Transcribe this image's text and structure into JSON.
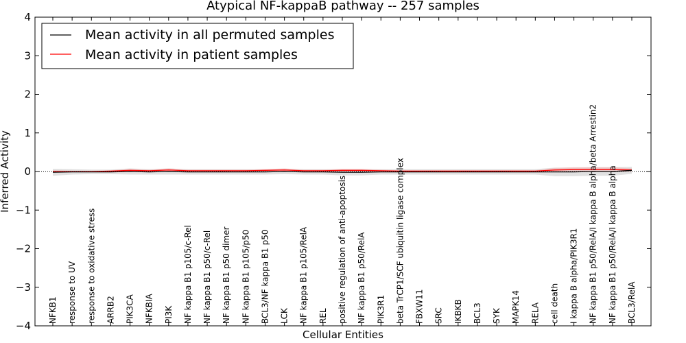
{
  "chart_data": {
    "type": "line",
    "title": "Atypical NF-kappaB pathway -- 257 samples",
    "xlabel": "Cellular Entities",
    "ylabel": "Inferred Activity",
    "ylim": [
      -4,
      4
    ],
    "yticks": [
      "−4",
      "−3",
      "−2",
      "−1",
      "0",
      "1",
      "2",
      "3",
      "4"
    ],
    "grid": false,
    "legend_position": "top-left",
    "categories": [
      "NFKB1",
      "response to UV",
      "response to oxidative stress",
      "ARRB2",
      "PIK3CA",
      "NFKBIA",
      "PI3K",
      "NF kappa B1 p105/c-Rel",
      "NF kappa B1 p50/c-Rel",
      "NF kappa B1 p50 dimer",
      "NF kappa B1 p105/p50",
      "BCL3/NF kappa B1 p50",
      "LCK",
      "NF kappa B1 p105/RelA",
      "REL",
      "positive regulation of anti-apoptosis",
      "NF kappa B1 p50/RelA",
      "PIK3R1",
      "beta TrCP1/SCF ubiquitin ligase complex",
      "FBXW11",
      "SRC",
      "IKBKB",
      "BCL3",
      "SYK",
      "MAPK14",
      "RELA",
      "cell death",
      "I kappa B alpha/PIK3R1",
      "NF kappa B1 p50/RelA/I kappa B alpha/beta Arrestin2",
      "NF kappa B1 p50/RelA/I kappa B alpha",
      "BCL3/RelA"
    ],
    "series": [
      {
        "name": "Mean activity in all permuted samples",
        "color": "#000000",
        "values": [
          -0.02,
          -0.01,
          -0.01,
          -0.01,
          0.0,
          -0.01,
          0.0,
          -0.01,
          -0.01,
          -0.01,
          -0.01,
          -0.01,
          0.0,
          -0.01,
          -0.01,
          -0.02,
          -0.02,
          -0.01,
          -0.01,
          -0.01,
          -0.01,
          -0.01,
          -0.01,
          -0.01,
          -0.01,
          -0.01,
          -0.01,
          -0.01,
          0.0,
          0.0,
          0.03
        ],
        "spread": [
          0.09,
          0.07,
          0.06,
          0.06,
          0.08,
          0.07,
          0.08,
          0.07,
          0.07,
          0.07,
          0.07,
          0.07,
          0.07,
          0.07,
          0.07,
          0.08,
          0.08,
          0.07,
          0.07,
          0.07,
          0.07,
          0.07,
          0.07,
          0.07,
          0.07,
          0.07,
          0.11,
          0.11,
          0.11,
          0.11,
          0.09
        ]
      },
      {
        "name": "Mean activity in patient samples",
        "color": "#ff0000",
        "values": [
          0.0,
          0.0,
          0.0,
          0.01,
          0.03,
          0.02,
          0.04,
          0.02,
          0.02,
          0.02,
          0.02,
          0.03,
          0.04,
          0.02,
          0.02,
          0.03,
          0.03,
          0.02,
          0.01,
          0.01,
          0.01,
          0.01,
          0.01,
          0.01,
          0.01,
          0.01,
          0.04,
          0.05,
          0.05,
          0.05,
          0.04
        ],
        "spread": [
          0.03,
          0.02,
          0.02,
          0.02,
          0.04,
          0.03,
          0.04,
          0.03,
          0.03,
          0.03,
          0.03,
          0.03,
          0.04,
          0.03,
          0.03,
          0.04,
          0.04,
          0.03,
          0.02,
          0.02,
          0.02,
          0.02,
          0.02,
          0.02,
          0.02,
          0.02,
          0.05,
          0.06,
          0.06,
          0.06,
          0.04
        ]
      }
    ]
  }
}
